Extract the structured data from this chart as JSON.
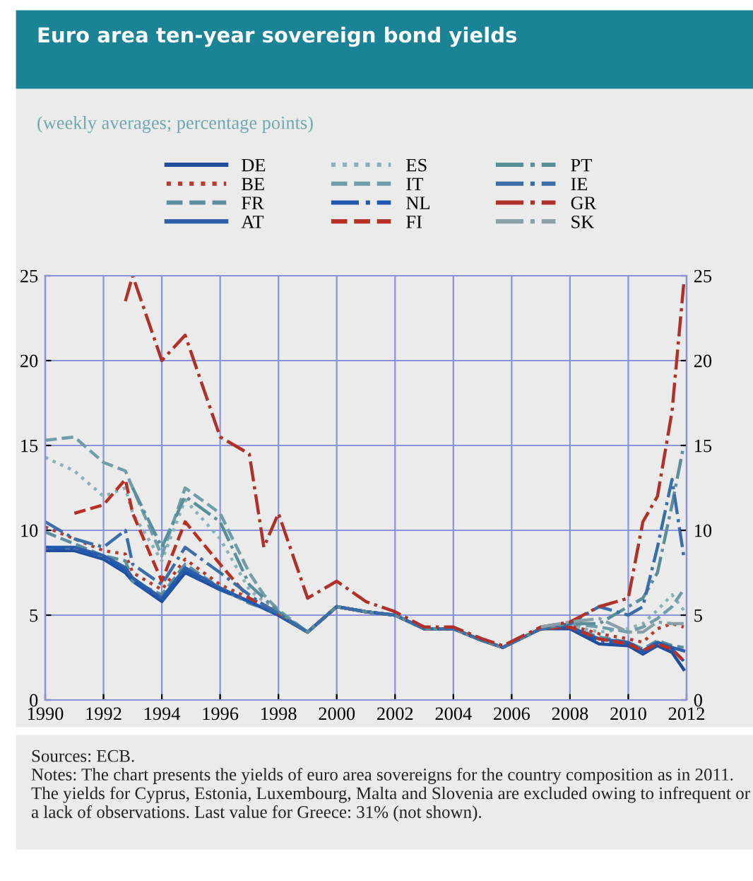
{
  "chart_data": {
    "type": "line",
    "title": "Euro area ten-year sovereign bond yields",
    "subtitle": "(weekly averages; percentage points)",
    "x": [
      1990,
      1991,
      1992,
      1992.75,
      1993,
      1994,
      1994.8,
      1996,
      1997,
      1997.5,
      1998,
      1999,
      2000,
      2001,
      2002,
      2003,
      2004,
      2005,
      2005.7,
      2007,
      2008,
      2009,
      2010,
      2010.5,
      2011,
      2011.5,
      2011.9
    ],
    "series": [
      {
        "name": "DE",
        "color": "#1f4e9c",
        "line_style": "solid",
        "values": [
          8.8,
          8.8,
          8.3,
          7.5,
          7.0,
          5.8,
          7.5,
          6.5,
          5.8,
          5.4,
          5.0,
          4.0,
          5.5,
          5.2,
          5.0,
          4.2,
          4.2,
          3.5,
          3.1,
          4.2,
          4.2,
          3.3,
          3.2,
          2.7,
          3.2,
          2.8,
          1.8
        ]
      },
      {
        "name": "BE",
        "color": "#b83a2e",
        "line_style": "dotted",
        "values": [
          10.2,
          9.5,
          8.8,
          8.6,
          7.5,
          6.5,
          8.3,
          6.8,
          6.0,
          5.6,
          5.1,
          4.0,
          5.5,
          5.2,
          5.0,
          4.2,
          4.2,
          3.5,
          3.1,
          4.2,
          4.4,
          3.9,
          3.6,
          3.4,
          4.2,
          4.5,
          4.3
        ]
      },
      {
        "name": "FR",
        "color": "#5b8fa0",
        "line_style": "dashed",
        "values": [
          9.9,
          9.2,
          8.5,
          8.2,
          7.0,
          6.2,
          8.0,
          6.6,
          5.7,
          5.4,
          5.0,
          4.0,
          5.5,
          5.2,
          5.0,
          4.2,
          4.2,
          3.5,
          3.1,
          4.2,
          4.3,
          3.7,
          3.4,
          3.0,
          3.5,
          3.2,
          3.1
        ]
      },
      {
        "name": "AT",
        "color": "#2e5fa8",
        "line_style": "solid",
        "values": [
          9.0,
          9.0,
          8.5,
          7.8,
          7.2,
          6.0,
          7.8,
          6.6,
          5.8,
          5.4,
          5.0,
          4.0,
          5.5,
          5.2,
          5.0,
          4.2,
          4.2,
          3.5,
          3.1,
          4.2,
          4.3,
          3.6,
          3.4,
          2.9,
          3.4,
          3.1,
          2.9
        ]
      },
      {
        "name": "ES",
        "color": "#8ab0b8",
        "line_style": "dotted",
        "values": [
          14.3,
          13.5,
          12.0,
          12.5,
          11.0,
          8.2,
          11.8,
          9.5,
          6.5,
          5.8,
          5.2,
          4.0,
          5.5,
          5.2,
          5.0,
          4.2,
          4.2,
          3.5,
          3.1,
          4.2,
          4.4,
          4.0,
          4.2,
          4.5,
          5.3,
          6.2,
          5.3
        ]
      },
      {
        "name": "IT",
        "color": "#6f9ea8",
        "line_style": "dashed",
        "values": [
          15.3,
          15.5,
          14.0,
          13.5,
          12.5,
          8.5,
          12.5,
          11.0,
          7.5,
          6.2,
          5.3,
          4.0,
          5.5,
          5.2,
          5.0,
          4.2,
          4.2,
          3.5,
          3.1,
          4.2,
          4.5,
          4.3,
          4.0,
          4.3,
          4.8,
          5.5,
          6.5
        ]
      },
      {
        "name": "NL",
        "color": "#2058b0",
        "line_style": "dashdot",
        "values": [
          9.0,
          8.9,
          8.4,
          7.6,
          7.0,
          5.9,
          7.6,
          6.5,
          5.8,
          5.4,
          5.0,
          4.0,
          5.5,
          5.2,
          5.0,
          4.2,
          4.2,
          3.5,
          3.1,
          4.2,
          4.3,
          3.5,
          3.3,
          2.8,
          3.3,
          3.0,
          2.3
        ]
      },
      {
        "name": "FI",
        "color": "#b83024",
        "line_style": "dashed",
        "values": [
          null,
          11.0,
          11.5,
          13.0,
          11.0,
          7.0,
          10.5,
          8.0,
          6.0,
          5.6,
          5.1,
          4.0,
          5.5,
          5.2,
          5.0,
          4.2,
          4.2,
          3.5,
          3.1,
          4.2,
          4.3,
          3.6,
          3.3,
          2.9,
          3.3,
          3.0,
          2.3
        ]
      },
      {
        "name": "PT",
        "color": "#5a8f9a",
        "line_style": "dashdot",
        "values": [
          null,
          null,
          null,
          null,
          12.5,
          9.0,
          12.0,
          10.5,
          6.8,
          6.0,
          5.2,
          4.0,
          5.5,
          5.2,
          5.0,
          4.2,
          4.2,
          3.5,
          3.1,
          4.2,
          4.5,
          4.5,
          5.5,
          6.0,
          7.5,
          11.5,
          15.0
        ]
      },
      {
        "name": "IE",
        "color": "#3a6ea8",
        "line_style": "dashdot",
        "values": [
          10.5,
          9.5,
          9.0,
          10.0,
          8.0,
          6.8,
          9.0,
          7.5,
          6.2,
          5.6,
          5.1,
          4.0,
          5.5,
          5.2,
          5.0,
          4.2,
          4.2,
          3.5,
          3.1,
          4.2,
          4.5,
          5.5,
          5.0,
          5.5,
          9.0,
          13.0,
          8.5
        ]
      },
      {
        "name": "GR",
        "color": "#b0302a",
        "line_style": "dashdot",
        "values": [
          null,
          null,
          null,
          23.5,
          25.0,
          20.0,
          21.5,
          15.5,
          14.5,
          9.0,
          11.0,
          6.0,
          7.0,
          5.8,
          5.2,
          4.3,
          4.3,
          3.6,
          3.2,
          4.3,
          4.6,
          5.5,
          6.0,
          10.5,
          12.0,
          17.0,
          24.5
        ]
      },
      {
        "name": "SK",
        "color": "#8aa0a8",
        "line_style": "dashdot",
        "values": [
          null,
          null,
          null,
          null,
          null,
          null,
          null,
          null,
          null,
          null,
          null,
          null,
          null,
          null,
          null,
          null,
          null,
          null,
          null,
          4.3,
          4.6,
          4.8,
          4.0,
          4.0,
          4.6,
          4.5,
          4.5
        ]
      }
    ],
    "xlim": [
      1990,
      2012
    ],
    "xticks": [
      1990,
      1992,
      1994,
      1996,
      1998,
      2000,
      2002,
      2004,
      2006,
      2008,
      2010,
      2012
    ],
    "ylim": [
      0,
      25
    ],
    "yticks": [
      0,
      5,
      10,
      15,
      20,
      25
    ],
    "y2lim": [
      0,
      25
    ],
    "y2ticks": [
      0,
      5,
      10,
      15,
      20,
      25
    ],
    "grid": true,
    "legend": "top",
    "marker": "none",
    "annotations": [
      "Sources: ECB.",
      "Notes: The chart presents the yields of euro area sovereigns for the country composition as in 2011. The yields for Cyprus, Estonia, Luxembourg, Malta and Slovenia are excluded owing to infrequent or a lack of observations. Last value for Greece: 31% (not shown)."
    ]
  }
}
